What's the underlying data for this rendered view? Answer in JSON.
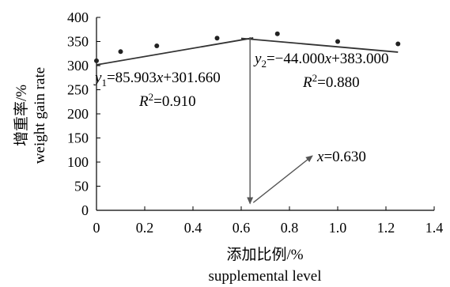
{
  "chart_data": {
    "type": "scatter",
    "x_ticks": [
      "0",
      "0.2",
      "0.4",
      "0.6",
      "0.8",
      "1.0",
      "1.2",
      "1.4"
    ],
    "y_ticks": [
      "0",
      "50",
      "100",
      "150",
      "200",
      "250",
      "300",
      "350",
      "400"
    ],
    "xlim": [
      0,
      1.4
    ],
    "ylim": [
      0,
      400
    ],
    "xlabel_cn": "添加比例/%",
    "xlabel_en": "supplemental level",
    "ylabel_cn": "增重率/%",
    "ylabel_en": "weight gain rate",
    "grid": false,
    "points": [
      {
        "x": 0,
        "y": 310
      },
      {
        "x": 0.1,
        "y": 329
      },
      {
        "x": 0.25,
        "y": 341
      },
      {
        "x": 0.5,
        "y": 357
      },
      {
        "x": 0.75,
        "y": 366
      },
      {
        "x": 1.0,
        "y": 350
      },
      {
        "x": 1.25,
        "y": 345
      }
    ],
    "fit_lines": [
      {
        "slope": 85.903,
        "intercept": 301.66,
        "x_range": [
          0,
          0.65
        ]
      },
      {
        "slope": -44.0,
        "intercept": 383.0,
        "x_range": [
          0.6,
          1.25
        ]
      }
    ],
    "intersection_x": 0.63,
    "annotations": {
      "eq1": {
        "main": "y",
        "sub": "1",
        "rest": "=85.903",
        "var": "x",
        "tail": "+301.660"
      },
      "r2_1": {
        "main": "R",
        "sup": "2",
        "rest": "=0.910"
      },
      "eq2": {
        "main": "y",
        "sub": "2",
        "rest": "=−44.000",
        "var": "x",
        "tail": "+383.000"
      },
      "r2_2": {
        "main": "R",
        "sup": "2",
        "rest": "=0.880"
      },
      "xval": {
        "var": "x",
        "rest": "=0.630"
      }
    }
  }
}
